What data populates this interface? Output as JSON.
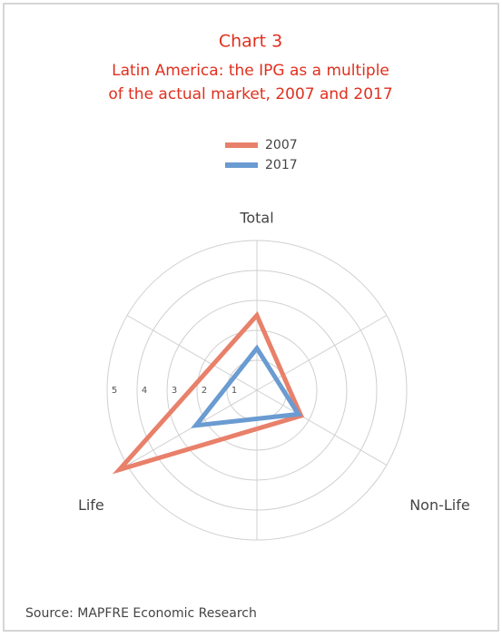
{
  "chart_data": {
    "type": "radar",
    "title": "Chart 3",
    "subtitle": [
      "Latin America: the IPG as a multiple",
      "of the actual market, 2007 and 2017"
    ],
    "categories": [
      "Total",
      "Non-Life",
      "Life"
    ],
    "series": [
      {
        "name": "2007",
        "color": "#e8806a",
        "values": [
          2.5,
          1.7,
          5.3
        ]
      },
      {
        "name": "2017",
        "color": "#6a9bd1",
        "values": [
          1.4,
          1.6,
          2.35
        ]
      }
    ],
    "rlim": [
      0,
      5
    ],
    "rticks": [
      1,
      2,
      3,
      4,
      5
    ],
    "grid": true,
    "source": "Source: MAPFRE Economic Research"
  }
}
